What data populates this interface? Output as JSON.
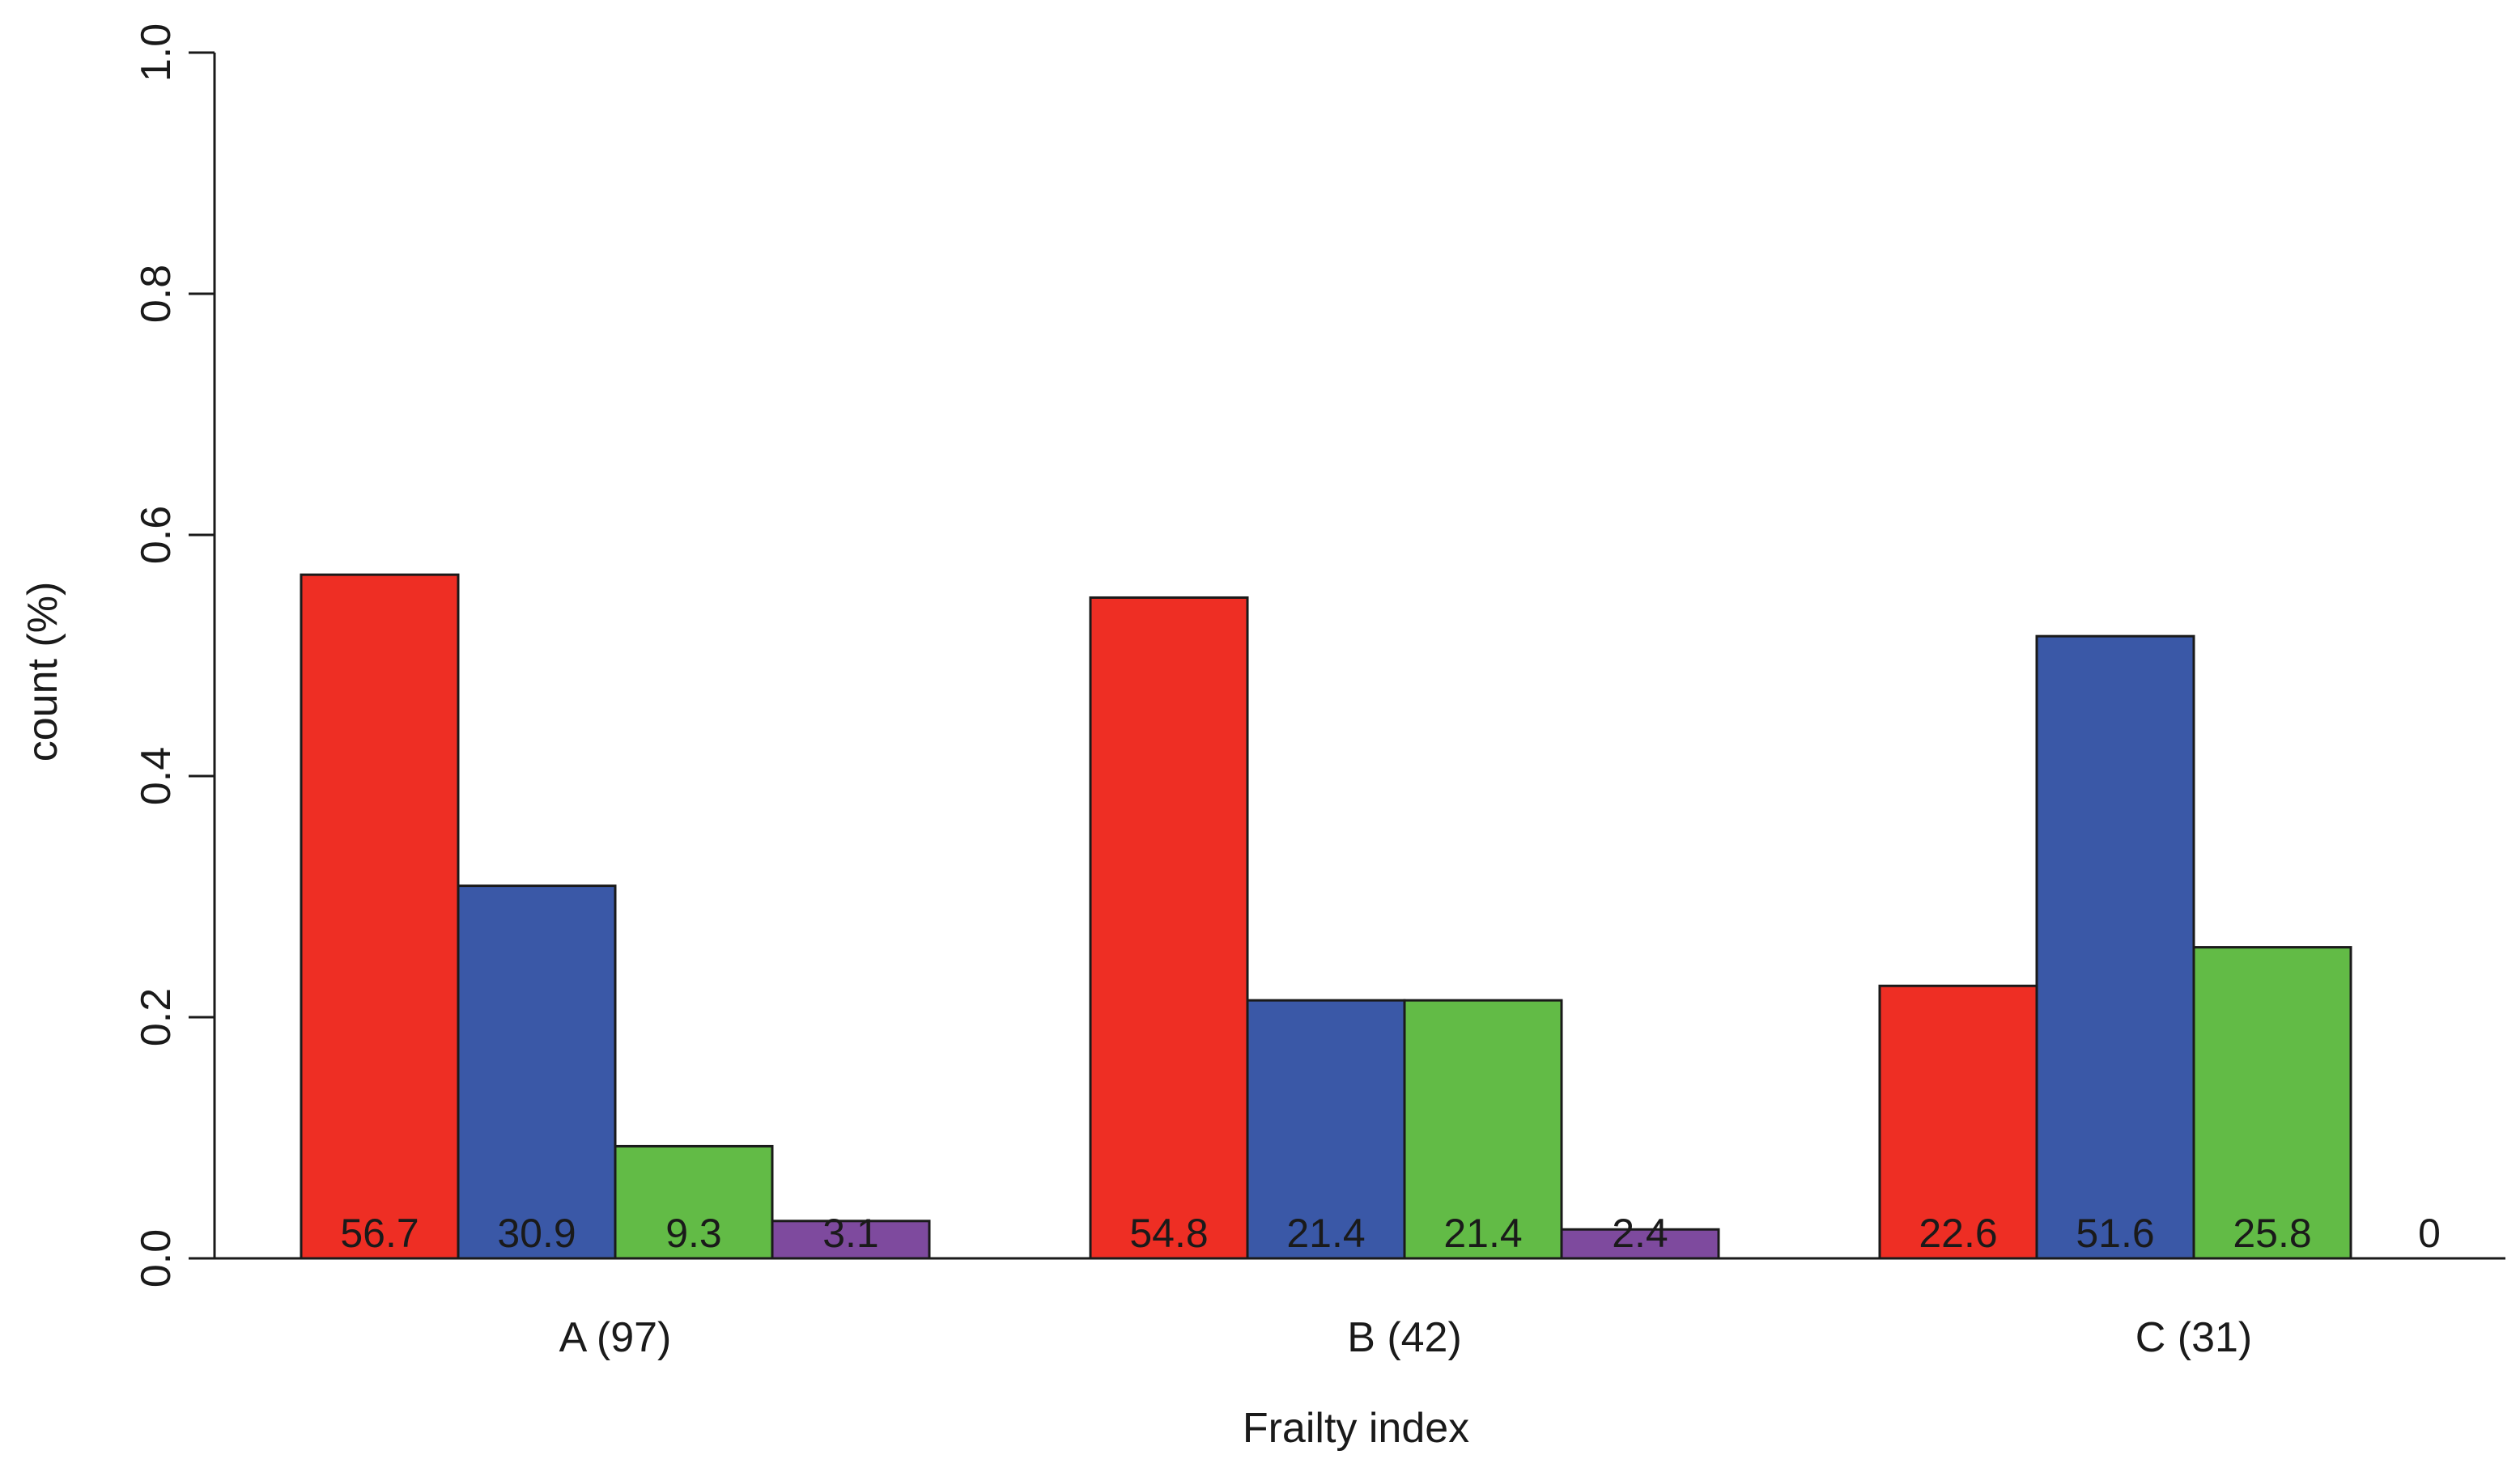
{
  "chart_data": {
    "type": "bar",
    "xlabel": "Frailty index",
    "ylabel": "count (%)",
    "categories": [
      "A (97)",
      "B (42)",
      "C (31)"
    ],
    "series": [
      {
        "color": "#EE2E24",
        "values": [
          0.567,
          0.548,
          0.226
        ],
        "labels": [
          "56.7",
          "54.8",
          "22.6"
        ]
      },
      {
        "color": "#3A58A7",
        "values": [
          0.309,
          0.214,
          0.516
        ],
        "labels": [
          "30.9",
          "21.4",
          "51.6"
        ]
      },
      {
        "color": "#62BB46",
        "values": [
          0.093,
          0.214,
          0.258
        ],
        "labels": [
          "9.3",
          "21.4",
          "25.8"
        ]
      },
      {
        "color": "#7E4A9E",
        "values": [
          0.031,
          0.024,
          0.0
        ],
        "labels": [
          "3.1",
          "2.4",
          "0"
        ]
      }
    ],
    "ylim": [
      0,
      1.0
    ],
    "yticks": [
      0.0,
      0.2,
      0.4,
      0.6,
      0.8,
      1.0
    ],
    "ytick_labels": [
      "0.0",
      "0.2",
      "0.4",
      "0.6",
      "0.8",
      "1.0"
    ],
    "grid": false,
    "legend": "none"
  }
}
